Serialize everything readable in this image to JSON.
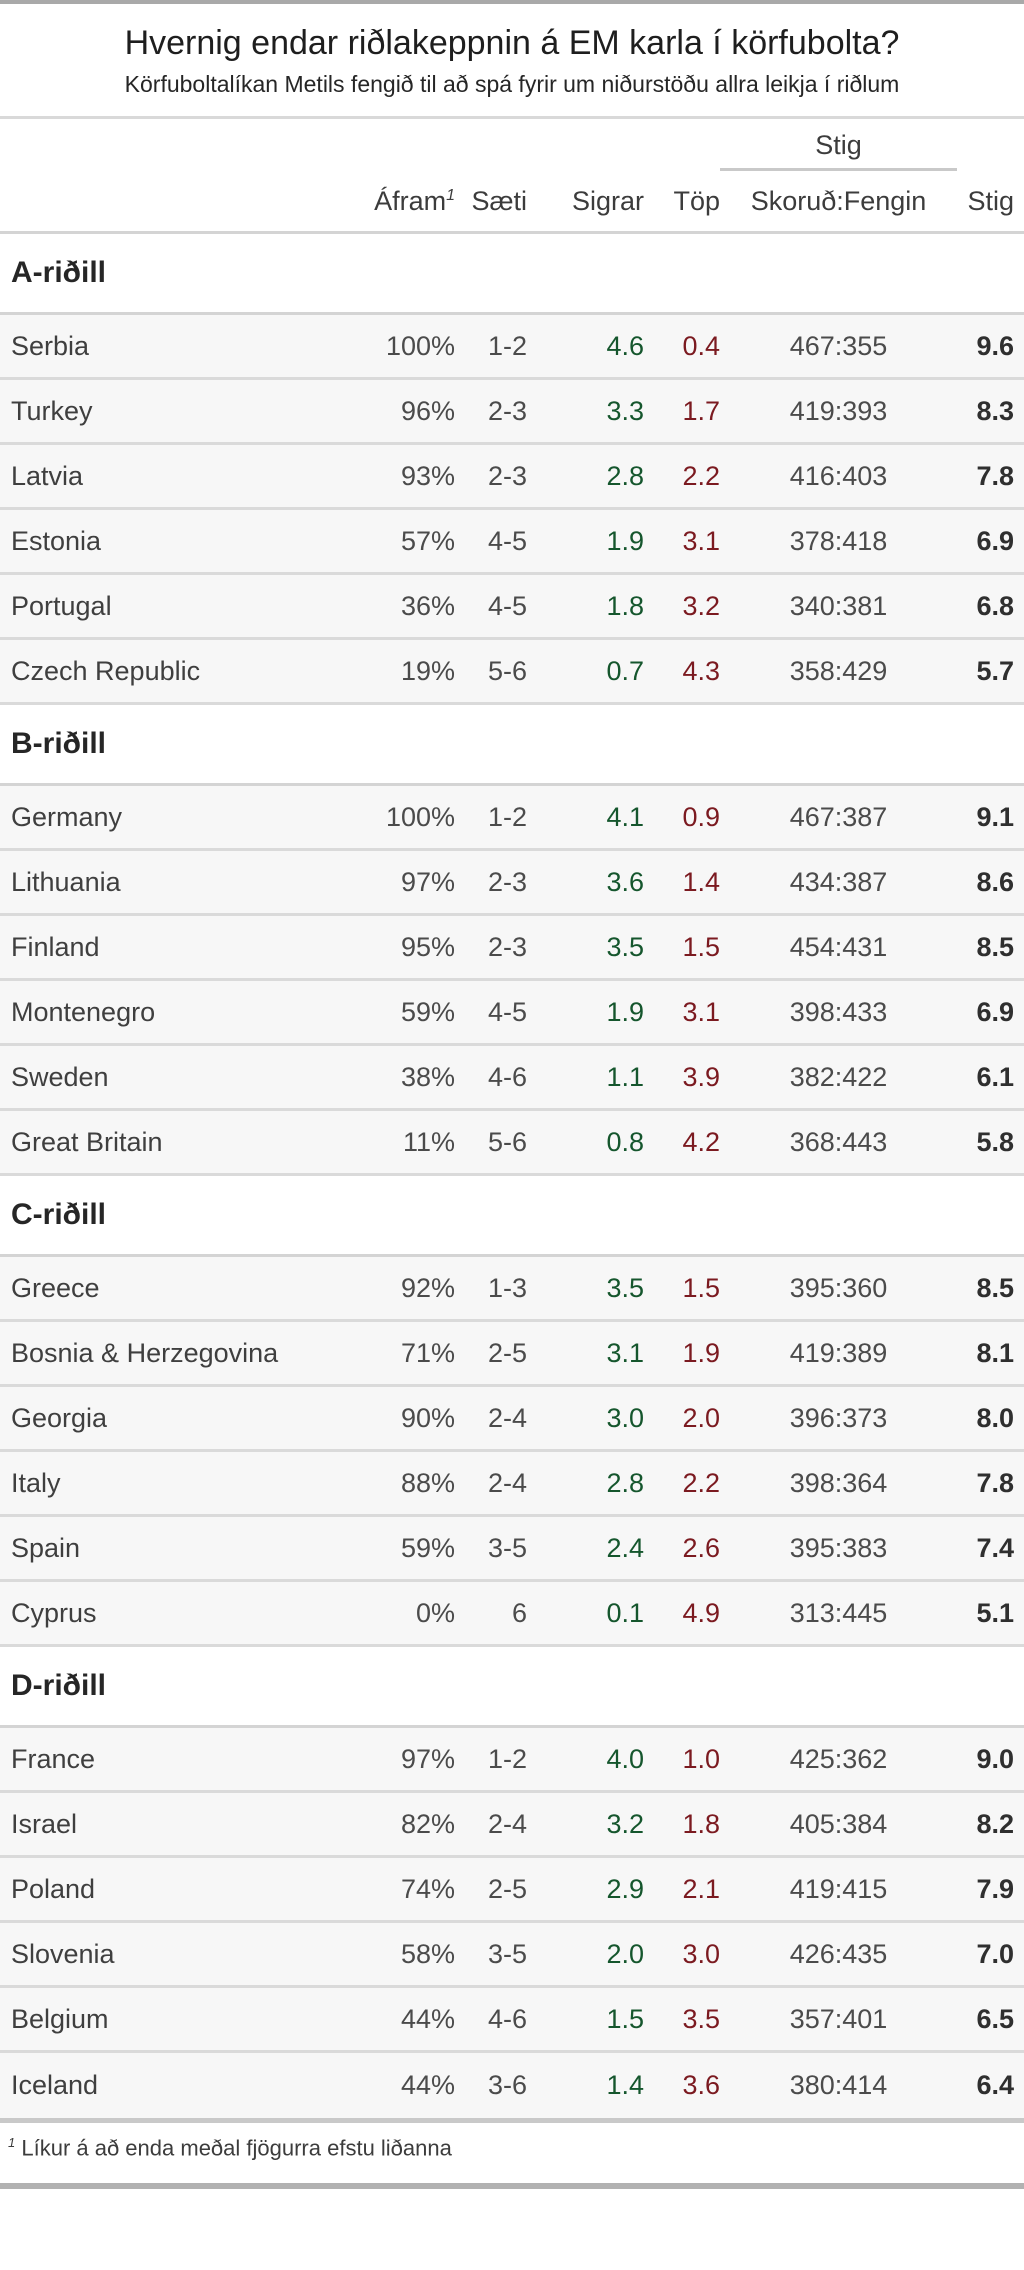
{
  "page": {
    "title": "Hvernig endar riðlakeppnin á EM karla í körfubolta?",
    "subtitle": "Körfuboltalíkan Metils fengið til að spá fyrir um niðurstöðu allra leikja í riðlum",
    "footnote_marker": "1",
    "footnote_text": "Líkur á að enda meðal fjögurra efstu liðanna"
  },
  "colors": {
    "wins_green": "#15562d",
    "losses_red": "#7b1a20",
    "points_bold": "#2f2f2f",
    "row_background": "#f7f7f7"
  },
  "table": {
    "stig_group_label": "Stig",
    "columns": {
      "advance": "Áfram",
      "advance_sup": "1",
      "seat": "Sæti",
      "wins": "Sigrar",
      "losses": "Töp",
      "scored_conceded": "Skoruð:Fengin",
      "points": "Stig"
    },
    "groups": [
      {
        "label": "A-riðill",
        "teams": [
          {
            "name": "Serbia",
            "advance": "100%",
            "seat": "1-2",
            "wins": "4.6",
            "losses": "0.4",
            "score": "467:355",
            "points": "9.6"
          },
          {
            "name": "Turkey",
            "advance": "96%",
            "seat": "2-3",
            "wins": "3.3",
            "losses": "1.7",
            "score": "419:393",
            "points": "8.3"
          },
          {
            "name": "Latvia",
            "advance": "93%",
            "seat": "2-3",
            "wins": "2.8",
            "losses": "2.2",
            "score": "416:403",
            "points": "7.8"
          },
          {
            "name": "Estonia",
            "advance": "57%",
            "seat": "4-5",
            "wins": "1.9",
            "losses": "3.1",
            "score": "378:418",
            "points": "6.9"
          },
          {
            "name": "Portugal",
            "advance": "36%",
            "seat": "4-5",
            "wins": "1.8",
            "losses": "3.2",
            "score": "340:381",
            "points": "6.8"
          },
          {
            "name": "Czech Republic",
            "advance": "19%",
            "seat": "5-6",
            "wins": "0.7",
            "losses": "4.3",
            "score": "358:429",
            "points": "5.7"
          }
        ]
      },
      {
        "label": "B-riðill",
        "teams": [
          {
            "name": "Germany",
            "advance": "100%",
            "seat": "1-2",
            "wins": "4.1",
            "losses": "0.9",
            "score": "467:387",
            "points": "9.1"
          },
          {
            "name": "Lithuania",
            "advance": "97%",
            "seat": "2-3",
            "wins": "3.6",
            "losses": "1.4",
            "score": "434:387",
            "points": "8.6"
          },
          {
            "name": "Finland",
            "advance": "95%",
            "seat": "2-3",
            "wins": "3.5",
            "losses": "1.5",
            "score": "454:431",
            "points": "8.5"
          },
          {
            "name": "Montenegro",
            "advance": "59%",
            "seat": "4-5",
            "wins": "1.9",
            "losses": "3.1",
            "score": "398:433",
            "points": "6.9"
          },
          {
            "name": "Sweden",
            "advance": "38%",
            "seat": "4-6",
            "wins": "1.1",
            "losses": "3.9",
            "score": "382:422",
            "points": "6.1"
          },
          {
            "name": "Great Britain",
            "advance": "11%",
            "seat": "5-6",
            "wins": "0.8",
            "losses": "4.2",
            "score": "368:443",
            "points": "5.8"
          }
        ]
      },
      {
        "label": "C-riðill",
        "teams": [
          {
            "name": "Greece",
            "advance": "92%",
            "seat": "1-3",
            "wins": "3.5",
            "losses": "1.5",
            "score": "395:360",
            "points": "8.5"
          },
          {
            "name": "Bosnia & Herzegovina",
            "advance": "71%",
            "seat": "2-5",
            "wins": "3.1",
            "losses": "1.9",
            "score": "419:389",
            "points": "8.1"
          },
          {
            "name": "Georgia",
            "advance": "90%",
            "seat": "2-4",
            "wins": "3.0",
            "losses": "2.0",
            "score": "396:373",
            "points": "8.0"
          },
          {
            "name": "Italy",
            "advance": "88%",
            "seat": "2-4",
            "wins": "2.8",
            "losses": "2.2",
            "score": "398:364",
            "points": "7.8"
          },
          {
            "name": "Spain",
            "advance": "59%",
            "seat": "3-5",
            "wins": "2.4",
            "losses": "2.6",
            "score": "395:383",
            "points": "7.4"
          },
          {
            "name": "Cyprus",
            "advance": "0%",
            "seat": "6",
            "wins": "0.1",
            "losses": "4.9",
            "score": "313:445",
            "points": "5.1"
          }
        ]
      },
      {
        "label": "D-riðill",
        "teams": [
          {
            "name": "France",
            "advance": "97%",
            "seat": "1-2",
            "wins": "4.0",
            "losses": "1.0",
            "score": "425:362",
            "points": "9.0"
          },
          {
            "name": "Israel",
            "advance": "82%",
            "seat": "2-4",
            "wins": "3.2",
            "losses": "1.8",
            "score": "405:384",
            "points": "8.2"
          },
          {
            "name": "Poland",
            "advance": "74%",
            "seat": "2-5",
            "wins": "2.9",
            "losses": "2.1",
            "score": "419:415",
            "points": "7.9"
          },
          {
            "name": "Slovenia",
            "advance": "58%",
            "seat": "3-5",
            "wins": "2.0",
            "losses": "3.0",
            "score": "426:435",
            "points": "7.0"
          },
          {
            "name": "Belgium",
            "advance": "44%",
            "seat": "4-6",
            "wins": "1.5",
            "losses": "3.5",
            "score": "357:401",
            "points": "6.5"
          },
          {
            "name": "Iceland",
            "advance": "44%",
            "seat": "3-6",
            "wins": "1.4",
            "losses": "3.6",
            "score": "380:414",
            "points": "6.4"
          }
        ]
      }
    ]
  }
}
